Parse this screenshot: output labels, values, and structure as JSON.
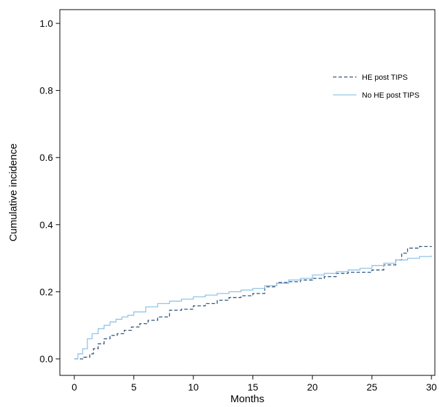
{
  "chart_data": {
    "type": "line",
    "step": true,
    "xlabel": "Months",
    "ylabel": "Cumulative incidence",
    "xlim": [
      0,
      30
    ],
    "ylim": [
      0,
      1.0
    ],
    "x_ticks": [
      0,
      5,
      10,
      15,
      20,
      25,
      30
    ],
    "y_ticks": [
      0.0,
      0.2,
      0.4,
      0.6,
      0.8,
      1.0
    ],
    "x_tick_labels": [
      "0",
      "5",
      "10",
      "15",
      "20",
      "25",
      "30"
    ],
    "y_tick_labels": [
      "0.0",
      "0.2",
      "0.4",
      "0.6",
      "0.8",
      "1.0"
    ],
    "grid": false,
    "legend_position": "top-right",
    "series": [
      {
        "name": "HE post TIPS",
        "color": "#2b4f7e",
        "dash": "dashed",
        "x": [
          0,
          0.8,
          1.3,
          1.6,
          2.0,
          2.5,
          3.0,
          3.6,
          4.2,
          4.8,
          5.5,
          6.2,
          7.0,
          8.0,
          9.0,
          10.0,
          11.0,
          12.0,
          13.0,
          14.0,
          15.0,
          16.0,
          17.0,
          18.0,
          19.0,
          20.0,
          21.0,
          22.0,
          23.0,
          24.0,
          25.0,
          26.0,
          27.0,
          27.5,
          28.0,
          29.0,
          30.0
        ],
        "y": [
          0.0,
          0.005,
          0.015,
          0.03,
          0.045,
          0.06,
          0.07,
          0.075,
          0.085,
          0.095,
          0.105,
          0.115,
          0.125,
          0.145,
          0.148,
          0.158,
          0.165,
          0.175,
          0.183,
          0.188,
          0.195,
          0.215,
          0.228,
          0.23,
          0.235,
          0.24,
          0.245,
          0.255,
          0.258,
          0.258,
          0.265,
          0.28,
          0.295,
          0.315,
          0.33,
          0.335,
          0.336
        ]
      },
      {
        "name": "No HE post TIPS",
        "color": "#8ec3e6",
        "dash": "solid",
        "x": [
          0,
          0.3,
          0.7,
          1.1,
          1.5,
          2.0,
          2.5,
          3.0,
          3.5,
          4.0,
          4.5,
          5.0,
          6.0,
          7.0,
          8.0,
          9.0,
          10.0,
          11.0,
          12.0,
          13.0,
          14.0,
          15.0,
          16.0,
          17.0,
          18.0,
          19.0,
          20.0,
          21.0,
          22.0,
          23.0,
          24.0,
          25.0,
          26.0,
          27.0,
          28.0,
          29.0,
          30.0
        ],
        "y": [
          0.0,
          0.015,
          0.03,
          0.06,
          0.075,
          0.09,
          0.1,
          0.11,
          0.118,
          0.125,
          0.13,
          0.14,
          0.155,
          0.165,
          0.172,
          0.178,
          0.185,
          0.19,
          0.195,
          0.2,
          0.205,
          0.21,
          0.218,
          0.225,
          0.235,
          0.24,
          0.25,
          0.255,
          0.26,
          0.265,
          0.27,
          0.278,
          0.285,
          0.295,
          0.3,
          0.305,
          0.308
        ]
      }
    ]
  }
}
